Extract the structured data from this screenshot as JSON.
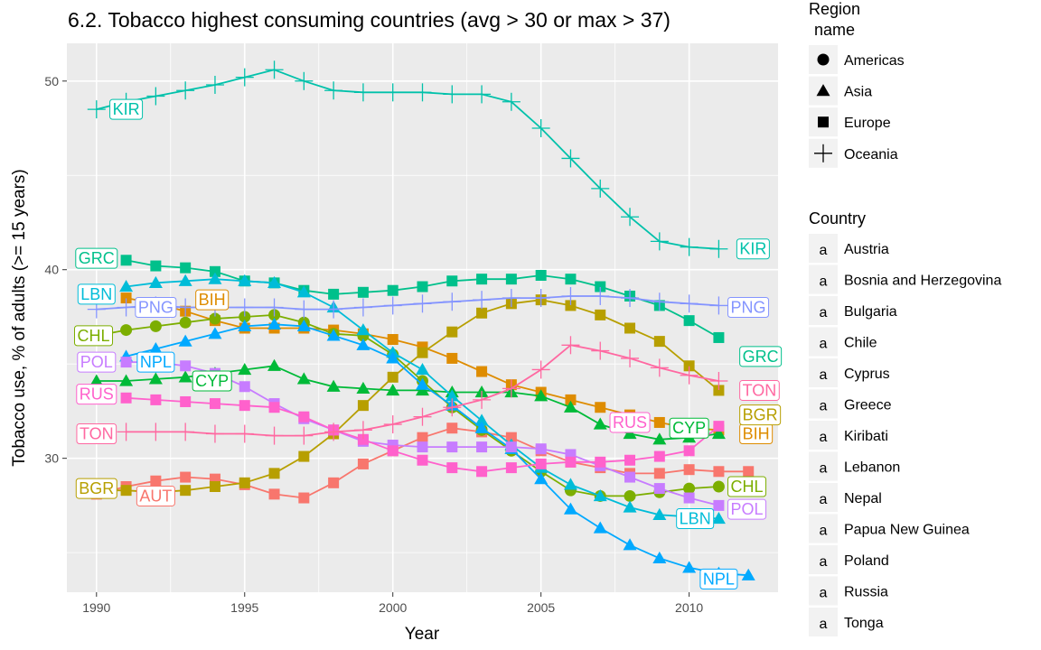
{
  "chart_data": {
    "type": "line",
    "title": "6.2. Tobacco highest consuming countries (avg > 30 or max > 37)",
    "xlabel": "Year",
    "ylabel": "Tobacco use, % of adults (>= 15 years)",
    "xlim": [
      1989.0,
      2013.0
    ],
    "ylim": [
      22.9,
      52.0
    ],
    "x_ticks": [
      1990,
      1995,
      2000,
      2005,
      2010
    ],
    "y_ticks": [
      30,
      40,
      50
    ],
    "grid": true,
    "legend_position": "right",
    "legend_shape_title": "Region\nname",
    "legend_color_title": "Country",
    "legend_color_glyph": "a",
    "regions": [
      {
        "name": "Americas",
        "shape": "circle"
      },
      {
        "name": "Asia",
        "shape": "triangle"
      },
      {
        "name": "Europe",
        "shape": "square"
      },
      {
        "name": "Oceania",
        "shape": "plus"
      }
    ],
    "series": [
      {
        "name": "Austria",
        "label": "AUT",
        "region": "Europe",
        "color": "#F8766D",
        "x": [
          1990,
          1991,
          1992,
          1993,
          1994,
          1995,
          1996,
          1997,
          1998,
          1999,
          2000,
          2001,
          2002,
          2003,
          2004,
          2005,
          2006,
          2007,
          2008,
          2009,
          2010,
          2011,
          2012
        ],
        "y": [
          28.1,
          28.5,
          28.8,
          29.0,
          28.9,
          28.6,
          28.1,
          27.9,
          28.7,
          29.7,
          30.4,
          31.1,
          31.6,
          31.4,
          31.1,
          30.4,
          29.8,
          29.5,
          29.2,
          29.2,
          29.4,
          29.3,
          29.3
        ],
        "label_pos": [
          1992.0,
          28.0,
          "middle"
        ]
      },
      {
        "name": "Bosnia and Herzegovina",
        "label": "BIH",
        "region": "Europe",
        "color": "#DE8C00",
        "x": [
          1991,
          1992,
          1993,
          1994,
          1995,
          1996,
          1997,
          1998,
          1999,
          2000,
          2001,
          2002,
          2003,
          2004,
          2005,
          2006,
          2007,
          2008,
          2009,
          2010,
          2011
        ],
        "y": [
          38.5,
          38.2,
          37.8,
          37.3,
          36.9,
          36.9,
          36.9,
          36.8,
          36.6,
          36.3,
          35.9,
          35.3,
          34.6,
          33.9,
          33.5,
          33.1,
          32.7,
          32.3,
          31.9,
          31.6,
          31.5
        ],
        "label_pos": [
          1993.9,
          38.4,
          "middle"
        ],
        "end_label_pos": [
          2011.8,
          31.3,
          "start"
        ]
      },
      {
        "name": "Bulgaria",
        "label": "BGR",
        "region": "Europe",
        "color": "#B79F00",
        "x": [
          1990,
          1991,
          1992,
          1993,
          1994,
          1995,
          1996,
          1997,
          1998,
          1999,
          2000,
          2001,
          2002,
          2003,
          2004,
          2005,
          2006,
          2007,
          2008,
          2009,
          2010,
          2011
        ],
        "y": [
          28.3,
          28.3,
          28.2,
          28.3,
          28.5,
          28.7,
          29.2,
          30.1,
          31.3,
          32.8,
          34.3,
          35.6,
          36.7,
          37.7,
          38.2,
          38.4,
          38.1,
          37.6,
          36.9,
          36.2,
          34.9,
          33.6
        ],
        "label_pos": [
          1990.0,
          28.4,
          "middle"
        ],
        "end_label_pos": [
          2011.8,
          32.3,
          "start"
        ]
      },
      {
        "name": "Chile",
        "label": "CHL",
        "region": "Americas",
        "color": "#7CAE00",
        "x": [
          1990,
          1991,
          1992,
          1993,
          1994,
          1995,
          1996,
          1997,
          1998,
          1999,
          2000,
          2001,
          2002,
          2003,
          2004,
          2005,
          2006,
          2007,
          2008,
          2009,
          2010,
          2011
        ],
        "y": [
          36.5,
          36.8,
          37.0,
          37.2,
          37.4,
          37.5,
          37.6,
          37.2,
          36.6,
          36.5,
          35.5,
          34.1,
          32.7,
          31.5,
          30.4,
          29.3,
          28.3,
          28.0,
          28.0,
          28.2,
          28.4,
          28.5
        ],
        "label_pos": [
          1989.9,
          36.5,
          "middle"
        ],
        "end_label_pos": [
          2011.4,
          28.5,
          "start"
        ]
      },
      {
        "name": "Cyprus",
        "label": "CYP",
        "region": "Asia",
        "color": "#00BA38",
        "x": [
          1990,
          1991,
          1992,
          1993,
          1994,
          1995,
          1996,
          1997,
          1998,
          1999,
          2000,
          2001,
          2002,
          2003,
          2004,
          2005,
          2006,
          2007,
          2008,
          2009,
          2010,
          2011
        ],
        "y": [
          34.1,
          34.1,
          34.2,
          34.3,
          34.5,
          34.7,
          34.9,
          34.2,
          33.8,
          33.7,
          33.6,
          33.6,
          33.5,
          33.5,
          33.5,
          33.3,
          32.7,
          31.8,
          31.3,
          31.0,
          31.1,
          31.3
        ],
        "label_pos": [
          1993.9,
          34.1,
          "middle"
        ],
        "end_label_pos": [
          2010.0,
          31.6,
          "middle"
        ]
      },
      {
        "name": "Greece",
        "label": "GRC",
        "region": "Europe",
        "color": "#00C08B",
        "x": [
          1991,
          1992,
          1993,
          1994,
          1995,
          1996,
          1997,
          1998,
          1999,
          2000,
          2001,
          2002,
          2003,
          2004,
          2005,
          2006,
          2007,
          2008,
          2009,
          2010,
          2011
        ],
        "y": [
          40.5,
          40.2,
          40.1,
          39.9,
          39.4,
          39.3,
          38.9,
          38.7,
          38.8,
          38.9,
          39.1,
          39.4,
          39.5,
          39.5,
          39.7,
          39.5,
          39.1,
          38.6,
          38.1,
          37.3,
          36.4
        ],
        "label_pos": [
          1990.0,
          40.6,
          "middle"
        ],
        "end_label_pos": [
          2011.8,
          35.4,
          "start"
        ]
      },
      {
        "name": "Kiribati",
        "label": "KIR",
        "region": "Oceania",
        "color": "#00C1AA",
        "x": [
          1990,
          1991,
          1992,
          1993,
          1994,
          1995,
          1996,
          1997,
          1998,
          1999,
          2000,
          2001,
          2002,
          2003,
          2004,
          2005,
          2006,
          2007,
          2008,
          2009,
          2010,
          2011
        ],
        "y": [
          48.5,
          48.9,
          49.2,
          49.5,
          49.8,
          50.2,
          50.6,
          50.0,
          49.5,
          49.4,
          49.4,
          49.4,
          49.3,
          49.3,
          48.9,
          47.5,
          45.9,
          44.3,
          42.8,
          41.5,
          41.2,
          41.1
        ],
        "label_pos": [
          1991.0,
          48.5,
          "middle"
        ],
        "end_label_pos": [
          2011.7,
          41.1,
          "start"
        ]
      },
      {
        "name": "Lebanon",
        "label": "LBN",
        "region": "Asia",
        "color": "#00BCD8",
        "x": [
          1991,
          1992,
          1993,
          1994,
          1995,
          1996,
          1997,
          1998,
          1999,
          2000,
          2001,
          2002,
          2003,
          2004,
          2005,
          2006,
          2007,
          2008,
          2009,
          2010,
          2011
        ],
        "y": [
          39.1,
          39.3,
          39.4,
          39.5,
          39.4,
          39.3,
          38.8,
          38.0,
          36.8,
          35.6,
          34.7,
          33.3,
          32.0,
          30.7,
          29.5,
          28.6,
          28.0,
          27.4,
          27.0,
          26.9,
          26.8
        ],
        "label_pos": [
          1990.0,
          38.7,
          "middle"
        ],
        "end_label_pos": [
          2010.2,
          26.8,
          "middle"
        ]
      },
      {
        "name": "Nepal",
        "label": "NPL",
        "region": "Asia",
        "color": "#00A9FF",
        "x": [
          1991,
          1992,
          1993,
          1994,
          1995,
          1996,
          1997,
          1998,
          1999,
          2000,
          2001,
          2002,
          2003,
          2004,
          2005,
          2006,
          2007,
          2008,
          2009,
          2010,
          2011,
          2012
        ],
        "y": [
          35.4,
          35.8,
          36.2,
          36.6,
          37.0,
          37.1,
          37.0,
          36.5,
          36.0,
          35.3,
          33.9,
          32.8,
          31.6,
          30.5,
          28.9,
          27.3,
          26.3,
          25.4,
          24.7,
          24.2,
          23.9,
          23.8
        ],
        "label_pos": [
          1992.0,
          35.1,
          "middle"
        ],
        "end_label_pos": [
          2011.0,
          23.6,
          "middle"
        ]
      },
      {
        "name": "Papua New Guinea",
        "label": "PNG",
        "region": "Oceania",
        "color": "#8494FF",
        "x": [
          1990,
          1991,
          1992,
          1993,
          1994,
          1995,
          1996,
          1997,
          1998,
          1999,
          2000,
          2001,
          2002,
          2003,
          2004,
          2005,
          2006,
          2007,
          2008,
          2009,
          2010,
          2011
        ],
        "y": [
          37.9,
          38.0,
          38.1,
          38.0,
          38.0,
          38.0,
          38.0,
          37.9,
          37.9,
          38.0,
          38.1,
          38.2,
          38.3,
          38.4,
          38.5,
          38.5,
          38.6,
          38.6,
          38.5,
          38.3,
          38.2,
          38.1
        ],
        "label_pos": [
          1992.0,
          38.0,
          "middle"
        ],
        "end_label_pos": [
          2011.4,
          38.0,
          "start"
        ]
      },
      {
        "name": "Poland",
        "label": "POL",
        "region": "Europe",
        "color": "#C77CFF",
        "x": [
          1991,
          1992,
          1993,
          1994,
          1995,
          1996,
          1997,
          1998,
          1999,
          2000,
          2001,
          2002,
          2003,
          2004,
          2005,
          2006,
          2007,
          2008,
          2009,
          2010,
          2011
        ],
        "y": [
          35.1,
          35.1,
          34.9,
          34.5,
          33.8,
          32.9,
          32.1,
          31.5,
          30.9,
          30.7,
          30.6,
          30.6,
          30.6,
          30.6,
          30.5,
          30.2,
          29.6,
          29.0,
          28.4,
          27.9,
          27.5
        ],
        "label_pos": [
          1990.0,
          35.1,
          "middle"
        ],
        "end_label_pos": [
          2011.4,
          27.3,
          "start"
        ]
      },
      {
        "name": "Russia",
        "label": "RUS",
        "region": "Europe",
        "color": "#FF61CC",
        "x": [
          1991,
          1992,
          1993,
          1994,
          1995,
          1996,
          1997,
          1998,
          1999,
          2000,
          2001,
          2002,
          2003,
          2004,
          2005,
          2006,
          2007,
          2008,
          2009,
          2010,
          2011
        ],
        "y": [
          33.2,
          33.1,
          33.0,
          32.9,
          32.8,
          32.7,
          32.2,
          31.5,
          31.0,
          30.4,
          29.9,
          29.5,
          29.3,
          29.5,
          29.7,
          29.8,
          29.8,
          29.9,
          30.1,
          30.4,
          31.7
        ],
        "label_pos": [
          1990.0,
          33.4,
          "middle"
        ],
        "end_label_pos": [
          2008.0,
          31.9,
          "middle"
        ]
      },
      {
        "name": "Tonga",
        "label": "TON",
        "region": "Oceania",
        "color": "#FF68A1",
        "x": [
          1991,
          1992,
          1993,
          1994,
          1995,
          1996,
          1997,
          1998,
          1999,
          2000,
          2001,
          2002,
          2003,
          2004,
          2005,
          2006,
          2007,
          2008,
          2009,
          2010,
          2011
        ],
        "y": [
          31.4,
          31.4,
          31.4,
          31.3,
          31.3,
          31.2,
          31.2,
          31.4,
          31.5,
          31.8,
          32.2,
          32.7,
          33.1,
          33.7,
          34.7,
          36.0,
          35.7,
          35.3,
          34.8,
          34.4,
          34.1
        ],
        "label_pos": [
          1990.0,
          31.3,
          "middle"
        ],
        "end_label_pos": [
          2011.8,
          33.6,
          "start"
        ]
      }
    ]
  }
}
